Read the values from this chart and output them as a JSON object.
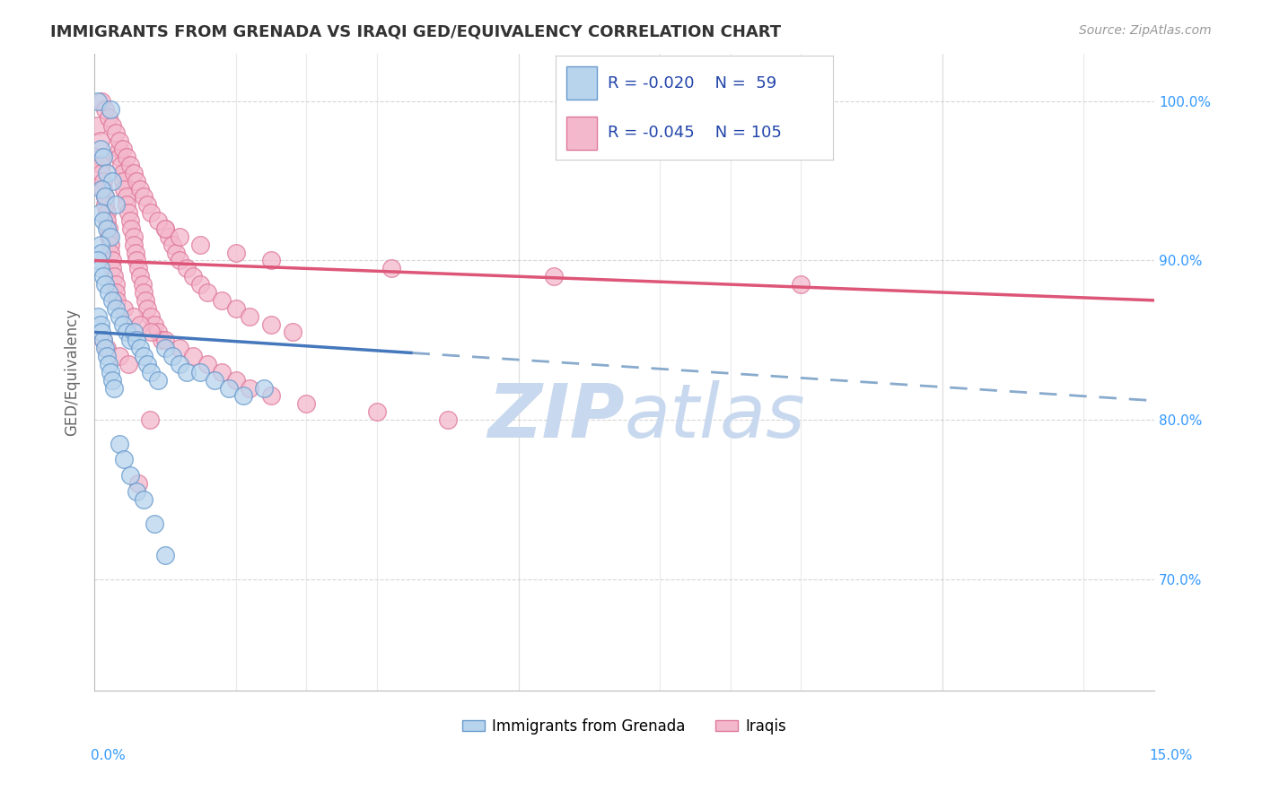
{
  "title": "IMMIGRANTS FROM GRENADA VS IRAQI GED/EQUIVALENCY CORRELATION CHART",
  "source": "Source: ZipAtlas.com",
  "ylabel": "GED/Equivalency",
  "series1_label": "Immigrants from Grenada",
  "series2_label": "Iraqis",
  "R1": -0.02,
  "N1": 59,
  "R2": -0.045,
  "N2": 105,
  "color_blue_fill": "#b8d4ed",
  "color_pink_fill": "#f4b8cc",
  "color_blue_edge": "#6699cc",
  "color_pink_edge": "#dd7799",
  "color_blue_line": "#4477bb",
  "color_pink_line": "#dd5577",
  "color_dashed": "#88aacc",
  "legend_R_color": "#2244aa",
  "watermark_color": "#c8d8ee",
  "background": "#ffffff",
  "grid_color": "#cccccc",
  "xmin": 0.0,
  "xmax": 15.0,
  "ymin": 63.0,
  "ymax": 103.0,
  "blue_line_x0": 0.0,
  "blue_line_y0": 85.5,
  "blue_line_x1": 4.5,
  "blue_line_y1": 84.2,
  "dashed_x0": 4.5,
  "dashed_y0": 84.2,
  "dashed_x1": 15.0,
  "dashed_y1": 81.2,
  "pink_line_x0": 0.0,
  "pink_line_y0": 90.0,
  "pink_line_x1": 15.0,
  "pink_line_y1": 87.5,
  "grenada_x": [
    0.05,
    0.22,
    0.08,
    0.12,
    0.18,
    0.25,
    0.1,
    0.15,
    0.3,
    0.08,
    0.12,
    0.18,
    0.22,
    0.08,
    0.1,
    0.05,
    0.08,
    0.12,
    0.15,
    0.2,
    0.25,
    0.3,
    0.35,
    0.4,
    0.45,
    0.5,
    0.55,
    0.6,
    0.65,
    0.7,
    0.75,
    0.8,
    0.9,
    1.0,
    1.1,
    1.2,
    1.3,
    1.5,
    1.7,
    1.9,
    2.1,
    2.4,
    0.05,
    0.08,
    0.1,
    0.12,
    0.15,
    0.18,
    0.2,
    0.22,
    0.25,
    0.28,
    0.35,
    0.42,
    0.5,
    0.6,
    0.7,
    0.85,
    1.0
  ],
  "grenada_y": [
    100.0,
    99.5,
    97.0,
    96.5,
    95.5,
    95.0,
    94.5,
    94.0,
    93.5,
    93.0,
    92.5,
    92.0,
    91.5,
    91.0,
    90.5,
    90.0,
    89.5,
    89.0,
    88.5,
    88.0,
    87.5,
    87.0,
    86.5,
    86.0,
    85.5,
    85.0,
    85.5,
    85.0,
    84.5,
    84.0,
    83.5,
    83.0,
    82.5,
    84.5,
    84.0,
    83.5,
    83.0,
    83.0,
    82.5,
    82.0,
    81.5,
    82.0,
    86.5,
    86.0,
    85.5,
    85.0,
    84.5,
    84.0,
    83.5,
    83.0,
    82.5,
    82.0,
    78.5,
    77.5,
    76.5,
    75.5,
    75.0,
    73.5,
    71.5
  ],
  "iraqis_x": [
    0.05,
    0.08,
    0.08,
    0.1,
    0.1,
    0.12,
    0.12,
    0.15,
    0.15,
    0.18,
    0.18,
    0.2,
    0.2,
    0.22,
    0.22,
    0.25,
    0.25,
    0.28,
    0.3,
    0.3,
    0.32,
    0.35,
    0.35,
    0.38,
    0.4,
    0.4,
    0.42,
    0.45,
    0.45,
    0.48,
    0.5,
    0.52,
    0.55,
    0.55,
    0.58,
    0.6,
    0.62,
    0.65,
    0.68,
    0.7,
    0.72,
    0.75,
    0.8,
    0.85,
    0.9,
    0.95,
    1.0,
    1.05,
    1.1,
    1.15,
    1.2,
    1.3,
    1.4,
    1.5,
    1.6,
    1.8,
    2.0,
    2.2,
    2.5,
    2.8,
    0.42,
    0.55,
    0.65,
    0.8,
    1.0,
    1.2,
    1.4,
    1.6,
    1.8,
    2.0,
    2.2,
    2.5,
    3.0,
    4.0,
    5.0,
    0.1,
    0.15,
    0.2,
    0.25,
    0.3,
    0.35,
    0.4,
    0.45,
    0.5,
    0.55,
    0.6,
    0.65,
    0.7,
    0.75,
    0.8,
    0.9,
    1.0,
    1.2,
    1.5,
    2.0,
    2.5,
    4.2,
    6.5,
    10.0,
    0.12,
    0.18,
    0.35,
    0.48,
    0.62,
    0.78
  ],
  "iraqis_y": [
    98.5,
    97.5,
    96.5,
    96.0,
    95.5,
    95.0,
    94.5,
    94.0,
    93.5,
    93.0,
    92.5,
    92.0,
    91.5,
    91.0,
    90.5,
    90.0,
    89.5,
    89.0,
    88.5,
    88.0,
    87.5,
    97.0,
    96.5,
    96.0,
    95.5,
    95.0,
    94.5,
    94.0,
    93.5,
    93.0,
    92.5,
    92.0,
    91.5,
    91.0,
    90.5,
    90.0,
    89.5,
    89.0,
    88.5,
    88.0,
    87.5,
    87.0,
    86.5,
    86.0,
    85.5,
    85.0,
    92.0,
    91.5,
    91.0,
    90.5,
    90.0,
    89.5,
    89.0,
    88.5,
    88.0,
    87.5,
    87.0,
    86.5,
    86.0,
    85.5,
    87.0,
    86.5,
    86.0,
    85.5,
    85.0,
    84.5,
    84.0,
    83.5,
    83.0,
    82.5,
    82.0,
    81.5,
    81.0,
    80.5,
    80.0,
    100.0,
    99.5,
    99.0,
    98.5,
    98.0,
    97.5,
    97.0,
    96.5,
    96.0,
    95.5,
    95.0,
    94.5,
    94.0,
    93.5,
    93.0,
    92.5,
    92.0,
    91.5,
    91.0,
    90.5,
    90.0,
    89.5,
    89.0,
    88.5,
    85.0,
    84.5,
    84.0,
    83.5,
    76.0,
    80.0
  ]
}
